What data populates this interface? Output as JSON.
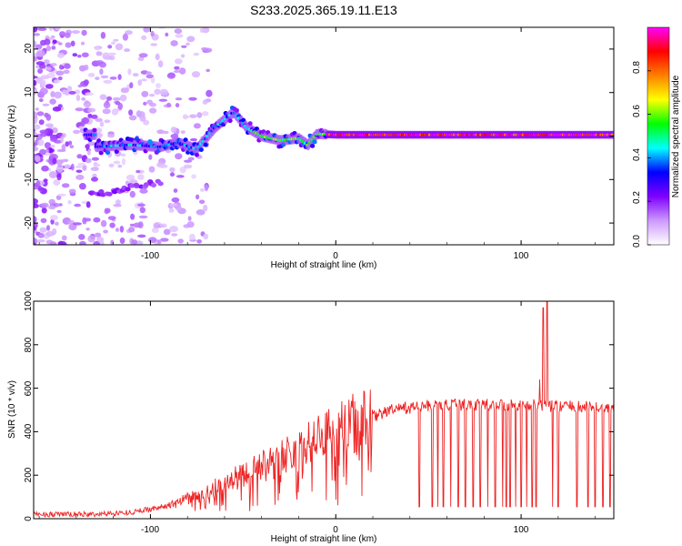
{
  "figure_title": "S233.2025.365.19.11.E13",
  "chart_data": [
    {
      "type": "heatmap",
      "title": "S233.2025.365.19.11.E13",
      "xlabel": "Height of straight line (km)",
      "ylabel": "Frequency (Hz)",
      "xlim": [
        -163,
        150
      ],
      "ylim": [
        -25,
        25
      ],
      "x_ticks": [
        "-100",
        "0",
        "100"
      ],
      "y_ticks": [
        "-20",
        "-10",
        "0",
        "10",
        "20"
      ],
      "colorbar": {
        "label": "Normalized spectral amplitude",
        "range": [
          0,
          1
        ],
        "ticks": [
          "0.0",
          "0.2",
          "0.4",
          "0.6",
          "0.8"
        ],
        "colors": [
          "#ffffff",
          "#cc99ff",
          "#7f00ff",
          "#0000ff",
          "#00ffff",
          "#00ff00",
          "#ffff00",
          "#ff8000",
          "#ff0000",
          "#ff00ff"
        ]
      },
      "ridge": [
        {
          "x": -130,
          "f": -2.5
        },
        {
          "x": -110,
          "f": -2.0
        },
        {
          "x": -95,
          "f": -2.5
        },
        {
          "x": -85,
          "f": -1.5
        },
        {
          "x": -75,
          "f": -3.0
        },
        {
          "x": -65,
          "f": 2.0
        },
        {
          "x": -55,
          "f": 5.5
        },
        {
          "x": -48,
          "f": 2.0
        },
        {
          "x": -40,
          "f": 0.0
        },
        {
          "x": -30,
          "f": -1.0
        },
        {
          "x": -20,
          "f": -0.5
        },
        {
          "x": -15,
          "f": -2.0
        },
        {
          "x": -10,
          "f": 0.5
        },
        {
          "x": 0,
          "f": 0.3
        },
        {
          "x": 50,
          "f": 0.3
        },
        {
          "x": 100,
          "f": 0.3
        },
        {
          "x": 150,
          "f": 0.3
        }
      ]
    },
    {
      "type": "line",
      "xlabel": "Height of straight line (km)",
      "ylabel": "SNR (10 * v/v)",
      "xlim": [
        -163,
        150
      ],
      "ylim": [
        0,
        1000
      ],
      "x_ticks": [
        "-100",
        "0",
        "100"
      ],
      "y_ticks": [
        "0",
        "200",
        "400",
        "600",
        "800",
        "1000"
      ],
      "color": "#ee2222",
      "trend": [
        {
          "x": -163,
          "y": 20
        },
        {
          "x": -130,
          "y": 20
        },
        {
          "x": -110,
          "y": 30
        },
        {
          "x": -90,
          "y": 60
        },
        {
          "x": -70,
          "y": 120
        },
        {
          "x": -50,
          "y": 200
        },
        {
          "x": -30,
          "y": 280
        },
        {
          "x": -10,
          "y": 360
        },
        {
          "x": 10,
          "y": 440
        },
        {
          "x": 30,
          "y": 500
        },
        {
          "x": 50,
          "y": 520
        },
        {
          "x": 80,
          "y": 525
        },
        {
          "x": 110,
          "y": 520
        },
        {
          "x": 150,
          "y": 510
        }
      ],
      "dropouts_x": [
        45,
        52,
        55,
        58,
        62,
        66,
        70,
        74,
        78,
        82,
        86,
        90,
        92,
        94,
        97,
        100,
        103,
        106,
        108,
        110,
        112,
        114,
        117,
        120,
        130,
        136,
        140,
        144,
        148
      ],
      "spikes": [
        {
          "x": 112,
          "y": 970
        },
        {
          "x": 114,
          "y": 1000
        },
        {
          "x": 110,
          "y": 640
        }
      ]
    }
  ]
}
